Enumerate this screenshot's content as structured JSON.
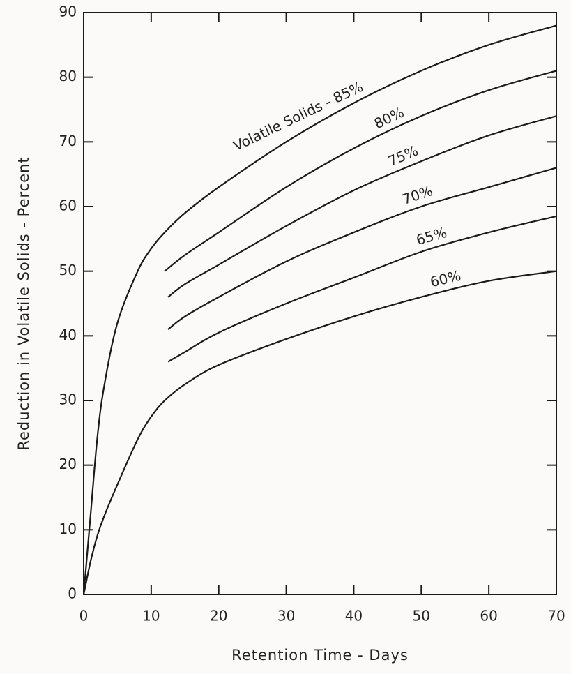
{
  "chart_data": {
    "type": "line",
    "xlabel": "Retention Time - Days",
    "ylabel": "Reduction in Volatile Solids - Percent",
    "xlim": [
      0,
      70
    ],
    "ylim": [
      0,
      90
    ],
    "xticks": [
      0,
      10,
      20,
      30,
      40,
      50,
      60,
      70
    ],
    "yticks": [
      0,
      10,
      20,
      30,
      40,
      50,
      60,
      70,
      80,
      90
    ],
    "series": [
      {
        "name": "Volatile Solids - 85%",
        "color": "#1a1a1a",
        "x": [
          0,
          1,
          2,
          3,
          5,
          8,
          10,
          12,
          15,
          20,
          30,
          40,
          50,
          60,
          70
        ],
        "values": [
          0,
          12,
          24,
          32,
          42,
          50,
          53.5,
          56,
          59,
          63,
          70,
          76,
          81,
          85,
          88
        ]
      },
      {
        "name": "80%",
        "color": "#1a1a1a",
        "x": [
          12,
          15,
          20,
          30,
          40,
          50,
          60,
          70
        ],
        "values": [
          50,
          52.5,
          56,
          63,
          69,
          74,
          78,
          81
        ]
      },
      {
        "name": "75%",
        "color": "#1a1a1a",
        "x": [
          12.5,
          15,
          20,
          30,
          40,
          50,
          60,
          70
        ],
        "values": [
          46,
          48,
          51,
          57,
          62.5,
          67,
          71,
          74
        ]
      },
      {
        "name": "70%",
        "color": "#1a1a1a",
        "x": [
          12.5,
          15,
          20,
          30,
          40,
          50,
          60,
          70
        ],
        "values": [
          41,
          43,
          46,
          51.5,
          56,
          60,
          63,
          66
        ]
      },
      {
        "name": "65%",
        "color": "#1a1a1a",
        "x": [
          12.5,
          15,
          20,
          30,
          40,
          50,
          60,
          70
        ],
        "values": [
          36,
          37.5,
          40.5,
          45,
          49,
          53,
          56,
          58.5
        ]
      },
      {
        "name": "60%",
        "color": "#1a1a1a",
        "x": [
          0,
          1,
          2,
          3,
          5,
          8,
          10,
          12,
          15,
          20,
          30,
          40,
          50,
          60,
          70
        ],
        "values": [
          0,
          5,
          9,
          12,
          17,
          24,
          27.5,
          30,
          32.5,
          35.5,
          39.5,
          43,
          46,
          48.5,
          50
        ]
      }
    ]
  }
}
